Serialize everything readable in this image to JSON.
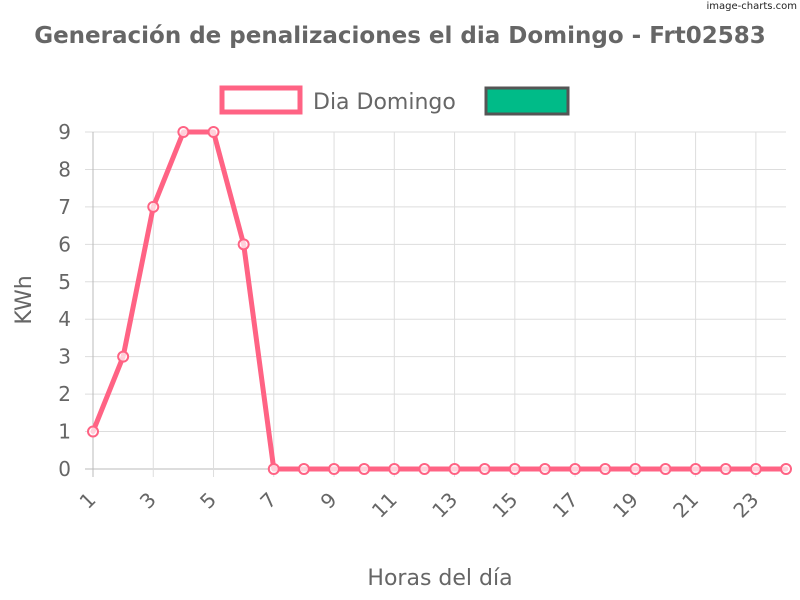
{
  "watermark": "image-charts.com",
  "chart_data": {
    "type": "line",
    "title": "Generación de penalizaciones el dia Domingo - Frt02583",
    "xlabel": "Horas del día",
    "ylabel": "KWh",
    "x": [
      1,
      2,
      3,
      4,
      5,
      6,
      7,
      8,
      9,
      10,
      11,
      12,
      13,
      14,
      15,
      16,
      17,
      18,
      19,
      20,
      21,
      22,
      23,
      24
    ],
    "x_tick_labels": [
      "1",
      "3",
      "5",
      "7",
      "9",
      "11",
      "13",
      "15",
      "17",
      "19",
      "21",
      "23"
    ],
    "y_tick_labels": [
      "0",
      "1",
      "2",
      "3",
      "4",
      "5",
      "6",
      "7",
      "8",
      "9"
    ],
    "ylim": [
      0,
      9
    ],
    "grid": true,
    "legend_position": "top",
    "series": [
      {
        "name": "Dia Domingo",
        "color": "#ff6384",
        "values": [
          1,
          3,
          7,
          9,
          9,
          6,
          0,
          0,
          0,
          0,
          0,
          0,
          0,
          0,
          0,
          0,
          0,
          0,
          0,
          0,
          0,
          0,
          0,
          0
        ]
      }
    ],
    "legend_extra": {
      "name": "",
      "color": "#00bb88",
      "border_color": "#555555"
    }
  }
}
